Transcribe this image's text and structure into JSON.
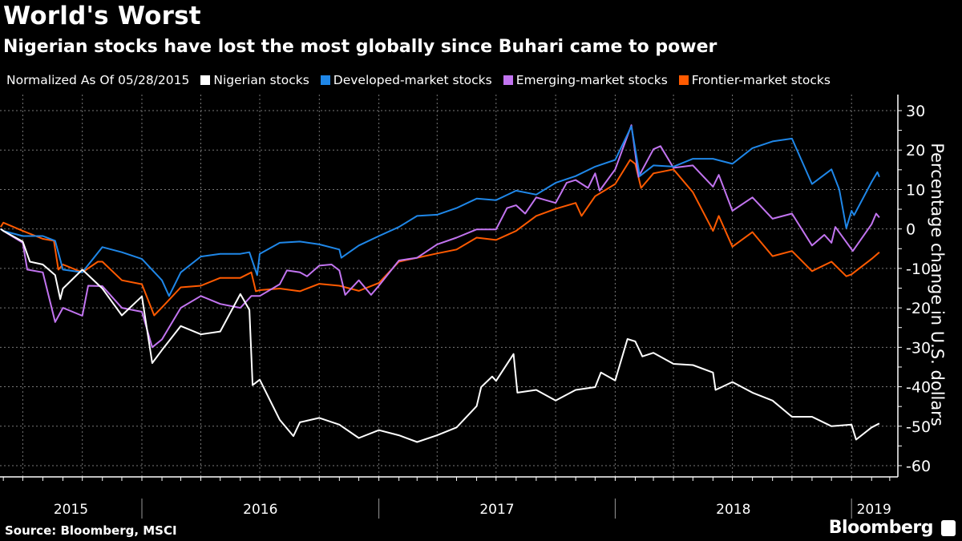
{
  "title": "World's Worst",
  "subtitle": "Nigerian stocks have lost the most globally since Buhari came to power",
  "source": "Source: Bloomberg, MSCI",
  "brand": "Bloomberg",
  "chart_data": {
    "type": "line",
    "legend_prefix": "Normalized As Of 05/28/2015",
    "legend_placement": "top",
    "ylabel": "Percentage change in U.S. dollars",
    "ylim": [
      -60,
      30
    ],
    "y_ticks": [
      30,
      20,
      10,
      0,
      -10,
      -20,
      -30,
      -40,
      -50,
      -60
    ],
    "y_tick_labels": [
      "30",
      "20",
      "10",
      "0",
      "-10",
      "-20",
      "-30",
      "-40",
      "-50",
      "-60"
    ],
    "x_range": [
      "2015-05-28",
      "2019-02-15"
    ],
    "x_tick_labels": [
      "2015",
      "2016",
      "2017",
      "2018",
      "2019"
    ],
    "grid": true,
    "background": "#000000",
    "series": [
      {
        "name": "Nigerian stocks",
        "color": "#ffffff",
        "points": [
          [
            "2015-05-28",
            0
          ],
          [
            "2015-06-01",
            -0.5
          ],
          [
            "2015-07-01",
            -3.2
          ],
          [
            "2015-07-12",
            -8.3
          ],
          [
            "2015-08-01",
            -9
          ],
          [
            "2015-08-20",
            -11.7
          ],
          [
            "2015-08-28",
            -17.8
          ],
          [
            "2015-09-01",
            -15.1
          ],
          [
            "2015-10-01",
            -10.3
          ],
          [
            "2015-11-01",
            -15.1
          ],
          [
            "2015-12-01",
            -21.9
          ],
          [
            "2016-01-01",
            -17.1
          ],
          [
            "2016-01-17",
            -34
          ],
          [
            "2016-02-01",
            -30.7
          ],
          [
            "2016-03-01",
            -24.6
          ],
          [
            "2016-04-01",
            -26.7
          ],
          [
            "2016-05-01",
            -26
          ],
          [
            "2016-06-01",
            -16.5
          ],
          [
            "2016-06-15",
            -20.5
          ],
          [
            "2016-06-20",
            -39.6
          ],
          [
            "2016-07-01",
            -38.2
          ],
          [
            "2016-08-01",
            -48.4
          ],
          [
            "2016-08-22",
            -52.5
          ],
          [
            "2016-09-01",
            -49
          ],
          [
            "2016-10-01",
            -47.9
          ],
          [
            "2016-11-01",
            -49.6
          ],
          [
            "2016-12-01",
            -53
          ],
          [
            "2017-01-01",
            -51
          ],
          [
            "2017-02-01",
            -52.3
          ],
          [
            "2017-03-01",
            -54
          ],
          [
            "2017-04-01",
            -52.3
          ],
          [
            "2017-05-01",
            -50.3
          ],
          [
            "2017-06-01",
            -44.9
          ],
          [
            "2017-06-08",
            -40.1
          ],
          [
            "2017-06-25",
            -37.4
          ],
          [
            "2017-07-01",
            -38.5
          ],
          [
            "2017-07-28",
            -31.7
          ],
          [
            "2017-08-03",
            -41.5
          ],
          [
            "2017-09-01",
            -40.8
          ],
          [
            "2017-10-01",
            -43.5
          ],
          [
            "2017-11-01",
            -40.8
          ],
          [
            "2017-12-01",
            -40.1
          ],
          [
            "2017-12-10",
            -36.4
          ],
          [
            "2018-01-01",
            -38.4
          ],
          [
            "2018-01-20",
            -27.9
          ],
          [
            "2018-02-01",
            -28.5
          ],
          [
            "2018-02-12",
            -32.3
          ],
          [
            "2018-03-01",
            -31.4
          ],
          [
            "2018-04-01",
            -34.2
          ],
          [
            "2018-05-01",
            -34.5
          ],
          [
            "2018-06-01",
            -36.4
          ],
          [
            "2018-06-05",
            -40.8
          ],
          [
            "2018-07-01",
            -38.8
          ],
          [
            "2018-08-01",
            -41.5
          ],
          [
            "2018-09-01",
            -43.5
          ],
          [
            "2018-10-01",
            -47.6
          ],
          [
            "2018-11-01",
            -47.6
          ],
          [
            "2018-12-01",
            -50
          ],
          [
            "2019-01-01",
            -49.6
          ],
          [
            "2019-01-08",
            -53.4
          ],
          [
            "2019-02-01",
            -50.3
          ],
          [
            "2019-02-13",
            -49.3
          ]
        ]
      },
      {
        "name": "Developed-market stocks",
        "color": "#1f87e8",
        "points": [
          [
            "2015-05-28",
            0
          ],
          [
            "2015-06-01",
            -0.5
          ],
          [
            "2015-07-01",
            -1.8
          ],
          [
            "2015-08-01",
            -1.8
          ],
          [
            "2015-08-20",
            -3
          ],
          [
            "2015-09-01",
            -10.3
          ],
          [
            "2015-10-01",
            -11
          ],
          [
            "2015-11-01",
            -4.6
          ],
          [
            "2015-12-01",
            -5.9
          ],
          [
            "2016-01-01",
            -7.6
          ],
          [
            "2016-02-01",
            -13
          ],
          [
            "2016-02-12",
            -17
          ],
          [
            "2016-03-01",
            -11
          ],
          [
            "2016-04-01",
            -7
          ],
          [
            "2016-05-01",
            -6.3
          ],
          [
            "2016-06-01",
            -6.3
          ],
          [
            "2016-06-15",
            -5.9
          ],
          [
            "2016-06-27",
            -11.7
          ],
          [
            "2016-07-01",
            -6.3
          ],
          [
            "2016-08-01",
            -3.5
          ],
          [
            "2016-09-01",
            -3.2
          ],
          [
            "2016-10-01",
            -3.9
          ],
          [
            "2016-11-01",
            -5.2
          ],
          [
            "2016-11-04",
            -7.3
          ],
          [
            "2016-12-01",
            -4.2
          ],
          [
            "2017-01-01",
            -1.8
          ],
          [
            "2017-02-01",
            0.5
          ],
          [
            "2017-03-01",
            3.3
          ],
          [
            "2017-04-01",
            3.6
          ],
          [
            "2017-05-01",
            5.3
          ],
          [
            "2017-06-01",
            7.7
          ],
          [
            "2017-07-01",
            7.3
          ],
          [
            "2017-08-01",
            9.7
          ],
          [
            "2017-09-01",
            8.7
          ],
          [
            "2017-10-01",
            11.7
          ],
          [
            "2017-11-01",
            13.4
          ],
          [
            "2017-12-01",
            15.8
          ],
          [
            "2018-01-01",
            17.5
          ],
          [
            "2018-01-26",
            26
          ],
          [
            "2018-02-08",
            13.4
          ],
          [
            "2018-03-01",
            16.1
          ],
          [
            "2018-04-01",
            15.8
          ],
          [
            "2018-05-01",
            17.8
          ],
          [
            "2018-06-01",
            17.8
          ],
          [
            "2018-07-01",
            16.5
          ],
          [
            "2018-08-01",
            20.5
          ],
          [
            "2018-09-01",
            22.2
          ],
          [
            "2018-10-01",
            22.9
          ],
          [
            "2018-11-01",
            11.4
          ],
          [
            "2018-12-01",
            15.1
          ],
          [
            "2018-12-13",
            10
          ],
          [
            "2018-12-24",
            0.2
          ],
          [
            "2019-01-01",
            4.6
          ],
          [
            "2019-01-05",
            3.5
          ],
          [
            "2019-02-01",
            11.9
          ],
          [
            "2019-02-10",
            14.4
          ],
          [
            "2019-02-13",
            13.2
          ]
        ]
      },
      {
        "name": "Emerging-market stocks",
        "color": "#c274f0",
        "points": [
          [
            "2015-05-28",
            0
          ],
          [
            "2015-06-01",
            -0.5
          ],
          [
            "2015-07-01",
            -3.5
          ],
          [
            "2015-07-08",
            -10.3
          ],
          [
            "2015-08-01",
            -11
          ],
          [
            "2015-08-20",
            -23.6
          ],
          [
            "2015-09-01",
            -20
          ],
          [
            "2015-10-01",
            -22
          ],
          [
            "2015-10-10",
            -14.4
          ],
          [
            "2015-11-01",
            -14.5
          ],
          [
            "2015-12-01",
            -20
          ],
          [
            "2016-01-01",
            -21
          ],
          [
            "2016-01-17",
            -30
          ],
          [
            "2016-02-01",
            -28
          ],
          [
            "2016-03-01",
            -20
          ],
          [
            "2016-04-01",
            -17
          ],
          [
            "2016-05-01",
            -19
          ],
          [
            "2016-06-01",
            -20
          ],
          [
            "2016-06-18",
            -17
          ],
          [
            "2016-07-01",
            -17
          ],
          [
            "2016-08-01",
            -14
          ],
          [
            "2016-08-12",
            -10.5
          ],
          [
            "2016-09-01",
            -11
          ],
          [
            "2016-09-12",
            -12
          ],
          [
            "2016-10-01",
            -9.3
          ],
          [
            "2016-10-20",
            -9
          ],
          [
            "2016-11-01",
            -10.5
          ],
          [
            "2016-11-10",
            -16.7
          ],
          [
            "2016-12-01",
            -13
          ],
          [
            "2016-12-20",
            -16.7
          ],
          [
            "2017-01-01",
            -14.4
          ],
          [
            "2017-02-01",
            -8
          ],
          [
            "2017-03-01",
            -7.3
          ],
          [
            "2017-04-01",
            -3.9
          ],
          [
            "2017-05-01",
            -2.2
          ],
          [
            "2017-06-01",
            -0.1
          ],
          [
            "2017-07-01",
            -0.1
          ],
          [
            "2017-07-18",
            5.3
          ],
          [
            "2017-08-01",
            6
          ],
          [
            "2017-08-15",
            3.9
          ],
          [
            "2017-09-01",
            8
          ],
          [
            "2017-10-01",
            6.6
          ],
          [
            "2017-10-18",
            11.7
          ],
          [
            "2017-11-01",
            12.4
          ],
          [
            "2017-11-20",
            10.4
          ],
          [
            "2017-12-01",
            14.1
          ],
          [
            "2017-12-08",
            9.7
          ],
          [
            "2018-01-01",
            15.1
          ],
          [
            "2018-01-26",
            26.3
          ],
          [
            "2018-02-06",
            13.2
          ],
          [
            "2018-03-01",
            20.2
          ],
          [
            "2018-03-12",
            21
          ],
          [
            "2018-04-01",
            15.5
          ],
          [
            "2018-05-01",
            16.1
          ],
          [
            "2018-06-01",
            10.7
          ],
          [
            "2018-06-10",
            13.7
          ],
          [
            "2018-07-01",
            4.6
          ],
          [
            "2018-08-01",
            8
          ],
          [
            "2018-09-01",
            2.6
          ],
          [
            "2018-10-01",
            3.9
          ],
          [
            "2018-11-01",
            -4.2
          ],
          [
            "2018-11-20",
            -1.5
          ],
          [
            "2018-12-01",
            -3.5
          ],
          [
            "2018-12-07",
            0.5
          ],
          [
            "2019-01-03",
            -5.6
          ],
          [
            "2019-02-01",
            1.2
          ],
          [
            "2019-02-08",
            3.9
          ],
          [
            "2019-02-13",
            2.9
          ]
        ]
      },
      {
        "name": "Frontier-market stocks",
        "color": "#ff5a00",
        "points": [
          [
            "2015-05-28",
            0.5
          ],
          [
            "2015-06-01",
            1.6
          ],
          [
            "2015-07-01",
            -0.5
          ],
          [
            "2015-08-01",
            -2.5
          ],
          [
            "2015-08-18",
            -3
          ],
          [
            "2015-08-25",
            -10.3
          ],
          [
            "2015-09-01",
            -9
          ],
          [
            "2015-10-01",
            -11
          ],
          [
            "2015-10-25",
            -8.3
          ],
          [
            "2015-11-01",
            -8.3
          ],
          [
            "2015-12-01",
            -13
          ],
          [
            "2016-01-01",
            -14
          ],
          [
            "2016-01-20",
            -21.9
          ],
          [
            "2016-02-01",
            -19.9
          ],
          [
            "2016-03-01",
            -14.8
          ],
          [
            "2016-04-01",
            -14.4
          ],
          [
            "2016-05-01",
            -12.4
          ],
          [
            "2016-06-01",
            -12.4
          ],
          [
            "2016-06-18",
            -11
          ],
          [
            "2016-06-25",
            -15.8
          ],
          [
            "2016-07-01",
            -15.5
          ],
          [
            "2016-08-01",
            -15.1
          ],
          [
            "2016-09-01",
            -15.8
          ],
          [
            "2016-10-01",
            -13.9
          ],
          [
            "2016-11-01",
            -14.4
          ],
          [
            "2016-12-01",
            -15.7
          ],
          [
            "2017-01-01",
            -13.7
          ],
          [
            "2017-02-01",
            -8.3
          ],
          [
            "2017-03-01",
            -7.3
          ],
          [
            "2017-04-01",
            -6.2
          ],
          [
            "2017-05-01",
            -5.2
          ],
          [
            "2017-06-01",
            -2.2
          ],
          [
            "2017-07-01",
            -2.8
          ],
          [
            "2017-08-01",
            -0.5
          ],
          [
            "2017-09-01",
            3.3
          ],
          [
            "2017-10-01",
            5.1
          ],
          [
            "2017-11-01",
            6.6
          ],
          [
            "2017-11-10",
            3.3
          ],
          [
            "2017-12-01",
            8.3
          ],
          [
            "2018-01-01",
            11.4
          ],
          [
            "2018-01-24",
            17.5
          ],
          [
            "2018-02-01",
            16.5
          ],
          [
            "2018-02-10",
            10.4
          ],
          [
            "2018-03-01",
            14.1
          ],
          [
            "2018-04-01",
            15.1
          ],
          [
            "2018-05-01",
            9.3
          ],
          [
            "2018-06-01",
            -0.5
          ],
          [
            "2018-06-10",
            3.3
          ],
          [
            "2018-07-01",
            -4.5
          ],
          [
            "2018-08-01",
            -0.8
          ],
          [
            "2018-09-01",
            -6.9
          ],
          [
            "2018-10-01",
            -5.6
          ],
          [
            "2018-11-01",
            -10.7
          ],
          [
            "2018-12-01",
            -8.3
          ],
          [
            "2018-12-24",
            -12
          ],
          [
            "2019-01-01",
            -11.5
          ],
          [
            "2019-02-01",
            -7.6
          ],
          [
            "2019-02-13",
            -5.9
          ]
        ]
      }
    ]
  }
}
